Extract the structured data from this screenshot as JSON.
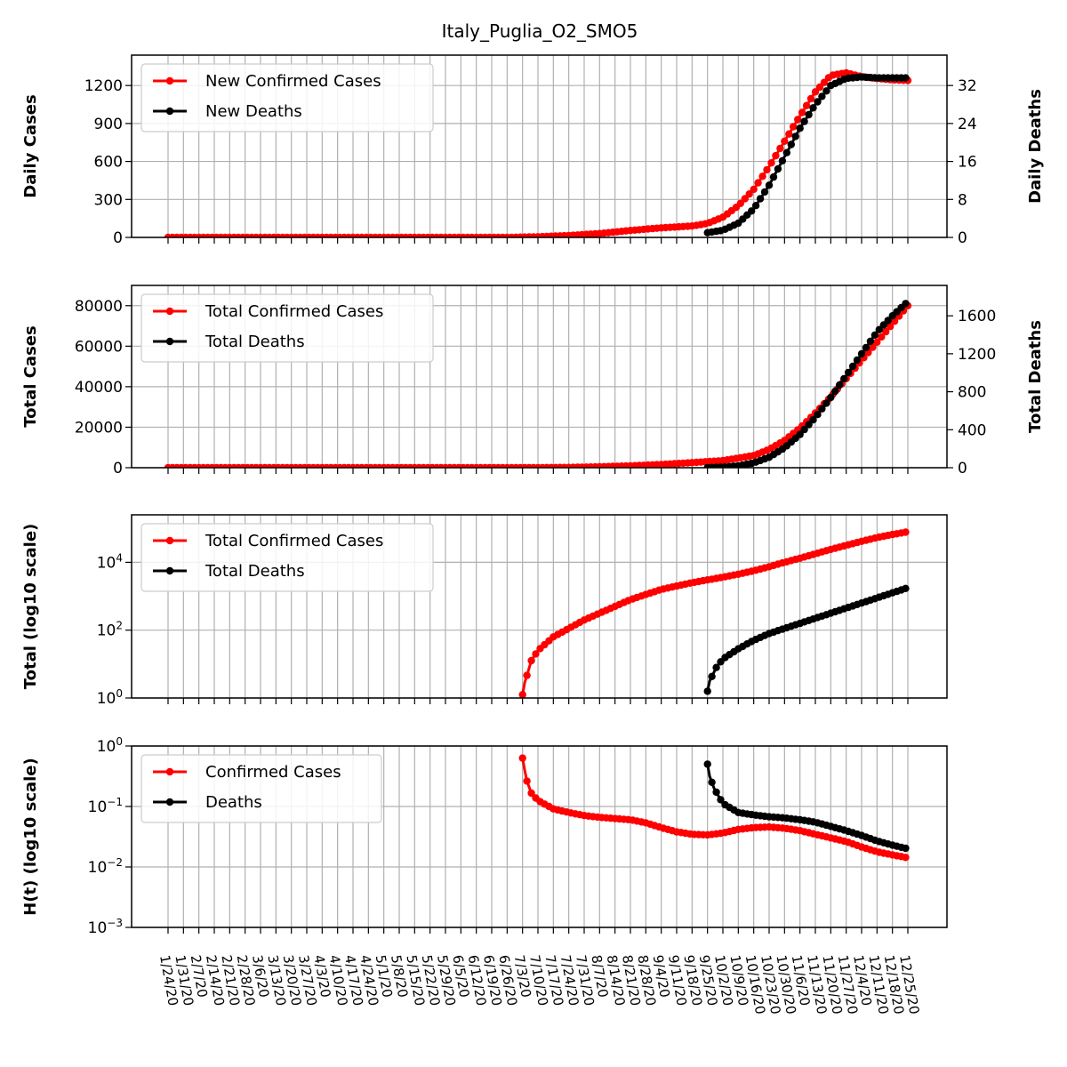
{
  "title": "Italy_Puglia_O2_SMO5",
  "colors": {
    "cases": "#ff0000",
    "deaths": "#000000",
    "grid": "#b0b0b0"
  },
  "chart_data": {
    "type": "line",
    "x_dates": [
      "1/24/20",
      "1/31/20",
      "2/7/20",
      "2/14/20",
      "2/21/20",
      "2/28/20",
      "3/6/20",
      "3/13/20",
      "3/20/20",
      "3/27/20",
      "4/3/20",
      "4/10/20",
      "4/17/20",
      "4/24/20",
      "5/1/20",
      "5/8/20",
      "5/15/20",
      "5/22/20",
      "5/29/20",
      "6/5/20",
      "6/12/20",
      "6/19/20",
      "6/26/20",
      "7/3/20",
      "7/10/20",
      "7/17/20",
      "7/24/20",
      "7/31/20",
      "8/7/20",
      "8/14/20",
      "8/21/20",
      "8/28/20",
      "9/4/20",
      "9/11/20",
      "9/18/20",
      "9/25/20",
      "10/2/20",
      "10/9/20",
      "10/16/20",
      "10/23/20",
      "10/30/20",
      "11/6/20",
      "11/13/20",
      "11/20/20",
      "11/27/20",
      "12/4/20",
      "12/11/20",
      "12/18/20",
      "12/25/20"
    ],
    "panels": [
      {
        "id": "daily",
        "ylabel": "Daily Cases",
        "ylabel_right": "Daily Deaths",
        "yticks": [
          "0",
          "300",
          "600",
          "900",
          "1200"
        ],
        "yticks_right": [
          "0",
          "8",
          "16",
          "24",
          "32"
        ],
        "legend": [
          "New Confirmed Cases",
          "New Deaths"
        ],
        "ylim": [
          0,
          1440
        ],
        "ylim_right": [
          0,
          38.4
        ],
        "series": [
          {
            "name": "New Confirmed Cases",
            "x": [
              "1/24/20",
              "6/26/20",
              "7/10/20",
              "7/24/20",
              "8/7/20",
              "8/21/20",
              "9/4/20",
              "9/18/20",
              "9/25/20",
              "10/2/20",
              "10/9/20",
              "10/16/20",
              "10/23/20",
              "10/30/20",
              "11/6/20",
              "11/13/20",
              "11/20/20",
              "11/27/20",
              "12/4/20",
              "12/11/20",
              "12/18/20",
              "12/25/20"
            ],
            "y": [
              0,
              0,
              5,
              15,
              30,
              55,
              75,
              90,
              110,
              160,
              250,
              380,
              560,
              760,
              960,
              1150,
              1280,
              1300,
              1270,
              1255,
              1245,
              1240
            ]
          },
          {
            "name": "New Deaths",
            "x": [
              "9/25/20",
              "10/2/20",
              "10/9/20",
              "10/16/20",
              "10/23/20",
              "10/30/20",
              "11/6/20",
              "11/13/20",
              "11/20/20",
              "11/27/20",
              "12/4/20",
              "12/11/20",
              "12/18/20",
              "12/25/20"
            ],
            "y": [
              1,
              1.5,
              3,
              6,
              11,
              17,
              23,
              28,
              32,
              33.5,
              33.8,
              33.6,
              33.6,
              33.6
            ],
            "axis": "right"
          }
        ]
      },
      {
        "id": "total",
        "ylabel": "Total Cases",
        "ylabel_right": "Total Deaths",
        "yticks": [
          "0",
          "20000",
          "40000",
          "60000",
          "80000"
        ],
        "yticks_right": [
          "0",
          "400",
          "800",
          "1200",
          "1600"
        ],
        "legend": [
          "Total Confirmed Cases",
          "Total Deaths"
        ],
        "ylim": [
          0,
          90000
        ],
        "ylim_right": [
          0,
          1920
        ],
        "series": [
          {
            "name": "Total Confirmed Cases",
            "x": [
              "1/24/20",
              "6/26/20",
              "7/10/20",
              "7/24/20",
              "8/7/20",
              "8/21/20",
              "9/4/20",
              "9/18/20",
              "10/2/20",
              "10/16/20",
              "10/23/20",
              "10/30/20",
              "11/6/20",
              "11/13/20",
              "11/20/20",
              "11/27/20",
              "12/4/20",
              "12/11/20",
              "12/18/20",
              "12/25/20"
            ],
            "y": [
              0,
              0,
              50,
              150,
              450,
              900,
              1600,
              2500,
              3500,
              6000,
              9000,
              13500,
              19500,
              27000,
              35000,
              44000,
              53000,
              62000,
              71000,
              80000
            ]
          },
          {
            "name": "Total Deaths",
            "x": [
              "9/25/20",
              "10/2/20",
              "10/9/20",
              "10/16/20",
              "10/23/20",
              "10/30/20",
              "11/6/20",
              "11/13/20",
              "11/20/20",
              "11/27/20",
              "12/4/20",
              "12/11/20",
              "12/18/20",
              "12/25/20"
            ],
            "y": [
              1,
              5,
              20,
              50,
              110,
              210,
              350,
              530,
              740,
              970,
              1200,
              1430,
              1600,
              1750
            ],
            "axis": "right"
          }
        ]
      },
      {
        "id": "log_total",
        "ylabel": "Total (log10 scale)",
        "yticks": [
          "10^0",
          "10^2",
          "10^4"
        ],
        "legend": [
          "Total Confirmed Cases",
          "Total Deaths"
        ],
        "scale": "log",
        "ylim_log10": [
          0,
          5.4
        ],
        "series": [
          {
            "name": "Total Confirmed Cases",
            "x": [
              "7/3/20",
              "7/4/20",
              "7/7/20",
              "7/10/20",
              "7/17/20",
              "7/24/20",
              "7/31/20",
              "8/7/20",
              "8/14/20",
              "8/21/20",
              "8/28/20",
              "9/4/20",
              "9/11/20",
              "9/18/20",
              "9/25/20",
              "10/2/20",
              "10/9/20",
              "10/16/20",
              "10/23/20",
              "10/30/20",
              "11/6/20",
              "11/13/20",
              "11/20/20",
              "11/27/20",
              "12/4/20",
              "12/11/20",
              "12/18/20",
              "12/25/20"
            ],
            "log10_y": [
              0.1,
              0.45,
              1.1,
              1.4,
              1.8,
              2.05,
              2.3,
              2.5,
              2.7,
              2.9,
              3.05,
              3.2,
              3.3,
              3.4,
              3.48,
              3.56,
              3.65,
              3.75,
              3.87,
              4.0,
              4.12,
              4.25,
              4.38,
              4.5,
              4.62,
              4.73,
              4.82,
              4.9
            ]
          },
          {
            "name": "Total Deaths",
            "x": [
              "9/25/20",
              "9/26/20",
              "9/29/20",
              "10/2/20",
              "10/9/20",
              "10/16/20",
              "10/23/20",
              "10/30/20",
              "11/6/20",
              "11/13/20",
              "11/20/20",
              "11/27/20",
              "12/4/20",
              "12/11/20",
              "12/18/20",
              "12/25/20"
            ],
            "log10_y": [
              0.2,
              0.5,
              0.9,
              1.15,
              1.45,
              1.7,
              1.9,
              2.05,
              2.2,
              2.35,
              2.5,
              2.65,
              2.8,
              2.95,
              3.1,
              3.25
            ]
          }
        ]
      },
      {
        "id": "hazard",
        "ylabel": "H(t) (log10 scale)",
        "yticks": [
          "10^-3",
          "10^-2",
          "10^-1",
          "10^0"
        ],
        "legend": [
          "Confirmed Cases",
          "Deaths"
        ],
        "scale": "log",
        "ylim_log10": [
          -3,
          0
        ],
        "series": [
          {
            "name": "Confirmed Cases",
            "x": [
              "7/3/20",
              "7/4/20",
              "7/5/20",
              "7/7/20",
              "7/10/20",
              "7/14/20",
              "7/17/20",
              "7/24/20",
              "7/31/20",
              "8/7/20",
              "8/14/20",
              "8/21/20",
              "8/28/20",
              "9/4/20",
              "9/11/20",
              "9/18/20",
              "9/25/20",
              "10/2/20",
              "10/9/20",
              "10/16/20",
              "10/23/20",
              "10/30/20",
              "11/6/20",
              "11/13/20",
              "11/20/20",
              "11/27/20",
              "12/4/20",
              "12/11/20",
              "12/18/20",
              "12/25/20"
            ],
            "log10_y": [
              -0.2,
              -0.4,
              -0.58,
              -0.78,
              -0.9,
              -0.98,
              -1.04,
              -1.1,
              -1.15,
              -1.18,
              -1.2,
              -1.22,
              -1.27,
              -1.35,
              -1.42,
              -1.46,
              -1.47,
              -1.44,
              -1.38,
              -1.35,
              -1.34,
              -1.36,
              -1.4,
              -1.46,
              -1.52,
              -1.58,
              -1.67,
              -1.75,
              -1.8,
              -1.85
            ]
          },
          {
            "name": "Deaths",
            "x": [
              "9/25/20",
              "9/26/20",
              "9/28/20",
              "10/2/20",
              "10/9/20",
              "10/16/20",
              "10/23/20",
              "10/30/20",
              "11/6/20",
              "11/13/20",
              "11/20/20",
              "11/27/20",
              "12/4/20",
              "12/11/20",
              "12/18/20",
              "12/25/20"
            ],
            "log10_y": [
              -0.3,
              -0.5,
              -0.7,
              -0.95,
              -1.1,
              -1.14,
              -1.17,
              -1.19,
              -1.22,
              -1.26,
              -1.33,
              -1.4,
              -1.48,
              -1.57,
              -1.64,
              -1.7
            ]
          }
        ]
      }
    ]
  }
}
